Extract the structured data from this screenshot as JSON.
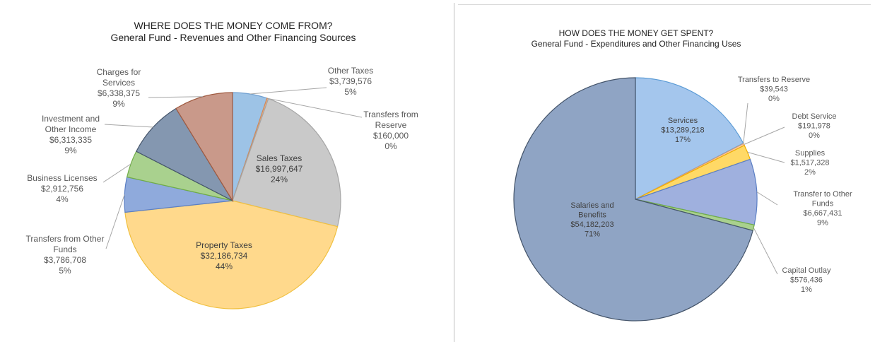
{
  "chart_data": [
    {
      "type": "pie",
      "title": "WHERE DOES THE MONEY COME FROM?",
      "subtitle": "General Fund - Revenues and Other Financing Sources",
      "slices": [
        {
          "label": "Other Taxes",
          "amount": "$3,739,576",
          "pct": "5%",
          "value": 3739576,
          "color": "#9dc3e6",
          "stroke": "#6f9fd0"
        },
        {
          "label": "Transfers from Reserve",
          "amount": "$160,000",
          "pct": "0%",
          "value": 160000,
          "color": "#f4b183",
          "stroke": "#d08a5a"
        },
        {
          "label": "Sales Taxes",
          "amount": "$16,997,647",
          "pct": "24%",
          "value": 16997647,
          "color": "#c9c9c9",
          "stroke": "#a6a6a6"
        },
        {
          "label": "Property Taxes",
          "amount": "$32,186,734",
          "pct": "44%",
          "value": 32186734,
          "color": "#ffd98c",
          "stroke": "#f0c040"
        },
        {
          "label": "Transfers from Other Funds",
          "amount": "$3,786,708",
          "pct": "5%",
          "value": 3786708,
          "color": "#8faadc",
          "stroke": "#5b7fc4"
        },
        {
          "label": "Business Licenses",
          "amount": "$2,912,756",
          "pct": "4%",
          "value": 2912756,
          "color": "#a9d18e",
          "stroke": "#70ad47"
        },
        {
          "label": "Investment and Other Income",
          "amount": "$6,313,335",
          "pct": "9%",
          "value": 6313335,
          "color": "#8497b0",
          "stroke": "#44546a"
        },
        {
          "label": "Charges for Services",
          "amount": "$6,338,375",
          "pct": "9%",
          "value": 6338375,
          "color": "#c9998a",
          "stroke": "#a05a40"
        }
      ]
    },
    {
      "type": "pie",
      "title": "HOW DOES THE MONEY GET SPENT?",
      "subtitle": "General Fund - Expenditures and Other Financing Uses",
      "slices": [
        {
          "label": "Services",
          "amount": "$13,289,218",
          "pct": "17%",
          "value": 13289218,
          "color": "#a4c6ed",
          "stroke": "#5b9bd5"
        },
        {
          "label": "Transfers to Reserve",
          "amount": "$39,543",
          "pct": "0%",
          "value": 39543,
          "color": "#bdd7ee",
          "stroke": "#5b9bd5"
        },
        {
          "label": "Debt Service",
          "amount": "$191,978",
          "pct": "0%",
          "value": 191978,
          "color": "#f8cbad",
          "stroke": "#e0a070"
        },
        {
          "label": "Supplies",
          "amount": "$1,517,328",
          "pct": "2%",
          "value": 1517328,
          "color": "#ffd966",
          "stroke": "#f0b000"
        },
        {
          "label": "Transfer to Other Funds",
          "amount": "$6,667,431",
          "pct": "9%",
          "value": 6667431,
          "color": "#9fb0de",
          "stroke": "#5b7fc4"
        },
        {
          "label": "Capital Outlay",
          "amount": "$576,436",
          "pct": "1%",
          "value": 576436,
          "color": "#a9d18e",
          "stroke": "#70ad47"
        },
        {
          "label": "Salaries and Benefits",
          "amount": "$54,182,203",
          "pct": "71%",
          "value": 54182203,
          "color": "#8fa4c4",
          "stroke": "#44546a"
        }
      ]
    }
  ]
}
